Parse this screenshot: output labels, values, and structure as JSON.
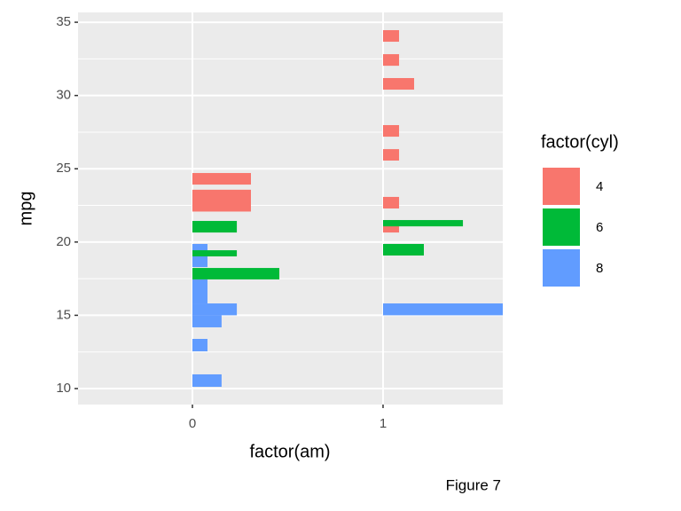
{
  "chart_data": {
    "type": "bar",
    "orientation": "horizontal",
    "x_label": "factor(am)",
    "y_label": "mpg",
    "caption": "Figure 7",
    "legend_title": "factor(cyl)",
    "xlim": [
      -0.6,
      1.628
    ],
    "xticks": [
      0,
      1
    ],
    "ylim": [
      8.91,
      35.67
    ],
    "yticks": [
      10,
      15,
      20,
      25,
      30,
      35
    ],
    "yminor": [
      12.5,
      17.5,
      22.5,
      27.5,
      32.5
    ],
    "grid": true,
    "series": [
      {
        "name": "4",
        "color": "#F8766D",
        "am": [
          0,
          0,
          1,
          1,
          1,
          1,
          1,
          1,
          1
        ],
        "ymin": [
          23.92,
          22.08,
          33.67,
          32.03,
          30.4,
          27.19,
          25.56,
          22.29,
          20.65
        ],
        "ymax": [
          24.71,
          23.57,
          34.46,
          32.82,
          31.19,
          27.98,
          26.34,
          23.08,
          21.5
        ],
        "values": [
          0.307,
          0.307,
          0.084,
          0.084,
          0.163,
          0.084,
          0.084,
          0.084,
          0.084
        ]
      },
      {
        "name": "6",
        "color": "#00BA38",
        "am": [
          0,
          0,
          0,
          1,
          1
        ],
        "ymin": [
          20.65,
          19.02,
          17.45,
          21.07,
          19.08
        ],
        "ymax": [
          21.44,
          19.44,
          18.23,
          21.5,
          19.87
        ],
        "values": [
          0.233,
          0.233,
          0.456,
          0.419,
          0.214
        ]
      },
      {
        "name": "8",
        "color": "#619CFF",
        "am": [
          0,
          0,
          0,
          0,
          0,
          0,
          1
        ],
        "ymin": [
          18.29,
          15.81,
          15.0,
          14.18,
          12.54,
          10.12,
          15.0
        ],
        "ymax": [
          19.87,
          17.45,
          15.81,
          15.0,
          13.39,
          10.97,
          15.81
        ],
        "values": [
          0.079,
          0.079,
          0.233,
          0.153,
          0.079,
          0.153,
          0.7
        ]
      }
    ]
  }
}
